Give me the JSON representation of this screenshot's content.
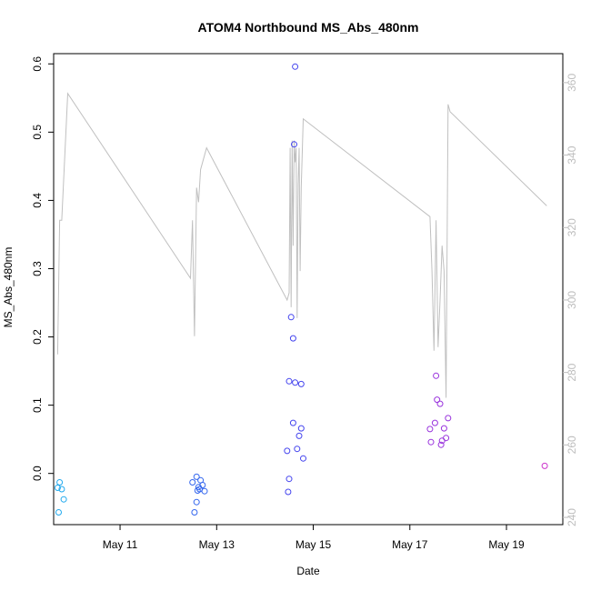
{
  "chart_data": {
    "type": "scatter",
    "title": "ATOM4 Northbound MS_Abs_480nm",
    "xlabel": "Date",
    "ylabel": "MS_Abs_480nm",
    "x_unit": "days",
    "xlim": [
      "2024-05-09T15:00",
      "2024-05-20T04:00"
    ],
    "ylim": [
      -0.075,
      0.615
    ],
    "y_ticks": [
      0.0,
      0.1,
      0.2,
      0.3,
      0.4,
      0.5,
      0.6
    ],
    "x_ticks": [
      {
        "label": "May 11",
        "value": "2024-05-11T00:00"
      },
      {
        "label": "May 13",
        "value": "2024-05-13T00:00"
      },
      {
        "label": "May 15",
        "value": "2024-05-15T00:00"
      },
      {
        "label": "May 17",
        "value": "2024-05-17T00:00"
      },
      {
        "label": "May 19",
        "value": "2024-05-19T00:00"
      }
    ],
    "y2lim": [
      238,
      368
    ],
    "y2_ticks": [
      240,
      260,
      280,
      300,
      320,
      340,
      360
    ],
    "grid": false,
    "legend": "none",
    "points": [
      {
        "x": "2024-05-09T18:00",
        "y": -0.013,
        "color": "#22aaee"
      },
      {
        "x": "2024-05-09T17:00",
        "y": -0.021,
        "color": "#22aaee"
      },
      {
        "x": "2024-05-09T19:00",
        "y": -0.023,
        "color": "#22aaee"
      },
      {
        "x": "2024-05-09T20:00",
        "y": -0.038,
        "color": "#22aaee"
      },
      {
        "x": "2024-05-09T17:30",
        "y": -0.057,
        "color": "#22aaee"
      },
      {
        "x": "2024-05-12T14:00",
        "y": -0.005,
        "color": "#3366ee"
      },
      {
        "x": "2024-05-12T16:00",
        "y": -0.01,
        "color": "#3366ee"
      },
      {
        "x": "2024-05-12T12:00",
        "y": -0.013,
        "color": "#3366ee"
      },
      {
        "x": "2024-05-12T17:00",
        "y": -0.017,
        "color": "#3366ee"
      },
      {
        "x": "2024-05-12T15:00",
        "y": -0.02,
        "color": "#3366ee"
      },
      {
        "x": "2024-05-12T15:30",
        "y": -0.023,
        "color": "#3366ee"
      },
      {
        "x": "2024-05-12T14:30",
        "y": -0.025,
        "color": "#3366ee"
      },
      {
        "x": "2024-05-12T18:00",
        "y": -0.026,
        "color": "#3366ee"
      },
      {
        "x": "2024-05-12T14:00",
        "y": -0.042,
        "color": "#3366ee"
      },
      {
        "x": "2024-05-12T13:00",
        "y": -0.057,
        "color": "#3366ee"
      },
      {
        "x": "2024-05-14T15:00",
        "y": 0.596,
        "color": "#4444ee"
      },
      {
        "x": "2024-05-14T14:30",
        "y": 0.482,
        "color": "#4444ee"
      },
      {
        "x": "2024-05-14T13:00",
        "y": 0.229,
        "color": "#4444ee"
      },
      {
        "x": "2024-05-14T14:00",
        "y": 0.198,
        "color": "#4444ee"
      },
      {
        "x": "2024-05-14T12:00",
        "y": 0.135,
        "color": "#4444ee"
      },
      {
        "x": "2024-05-14T15:00",
        "y": 0.133,
        "color": "#4444ee"
      },
      {
        "x": "2024-05-14T18:00",
        "y": 0.131,
        "color": "#4444ee"
      },
      {
        "x": "2024-05-14T14:00",
        "y": 0.074,
        "color": "#4444ee"
      },
      {
        "x": "2024-05-14T18:00",
        "y": 0.066,
        "color": "#4444ee"
      },
      {
        "x": "2024-05-14T17:00",
        "y": 0.055,
        "color": "#4444ee"
      },
      {
        "x": "2024-05-14T16:00",
        "y": 0.036,
        "color": "#4444ee"
      },
      {
        "x": "2024-05-14T11:00",
        "y": 0.033,
        "color": "#4444ee"
      },
      {
        "x": "2024-05-14T19:00",
        "y": 0.022,
        "color": "#4444ee"
      },
      {
        "x": "2024-05-14T12:00",
        "y": -0.008,
        "color": "#4444ee"
      },
      {
        "x": "2024-05-14T11:30",
        "y": -0.027,
        "color": "#4444ee"
      },
      {
        "x": "2024-05-17T13:00",
        "y": 0.143,
        "color": "#9933dd"
      },
      {
        "x": "2024-05-17T13:30",
        "y": 0.108,
        "color": "#9933dd"
      },
      {
        "x": "2024-05-17T15:00",
        "y": 0.102,
        "color": "#9933dd"
      },
      {
        "x": "2024-05-17T19:00",
        "y": 0.081,
        "color": "#9933dd"
      },
      {
        "x": "2024-05-17T12:30",
        "y": 0.074,
        "color": "#9933dd"
      },
      {
        "x": "2024-05-17T17:00",
        "y": 0.066,
        "color": "#9933dd"
      },
      {
        "x": "2024-05-17T10:00",
        "y": 0.065,
        "color": "#9933dd"
      },
      {
        "x": "2024-05-17T18:00",
        "y": 0.052,
        "color": "#9933dd"
      },
      {
        "x": "2024-05-17T16:00",
        "y": 0.048,
        "color": "#9933dd"
      },
      {
        "x": "2024-05-17T10:30",
        "y": 0.046,
        "color": "#9933dd"
      },
      {
        "x": "2024-05-17T15:30",
        "y": 0.042,
        "color": "#9933dd"
      },
      {
        "x": "2024-05-19T19:00",
        "y": 0.011,
        "color": "#cc33cc"
      }
    ],
    "line_series": {
      "axis": "right",
      "color": "#c0c0c0",
      "points": [
        [
          "2024-05-09T17:00",
          285
        ],
        [
          "2024-05-09T18:00",
          322
        ],
        [
          "2024-05-09T19:00",
          322
        ],
        [
          "2024-05-09T22:00",
          357
        ],
        [
          "2024-05-12T11:00",
          306
        ],
        [
          "2024-05-12T12:00",
          322
        ],
        [
          "2024-05-12T13:00",
          290
        ],
        [
          "2024-05-12T14:00",
          331
        ],
        [
          "2024-05-12T15:00",
          327
        ],
        [
          "2024-05-12T16:00",
          336
        ],
        [
          "2024-05-12T19:00",
          342
        ],
        [
          "2024-05-14T11:00",
          300
        ],
        [
          "2024-05-14T12:00",
          302
        ],
        [
          "2024-05-14T12:30",
          342
        ],
        [
          "2024-05-14T13:00",
          298
        ],
        [
          "2024-05-14T13:30",
          344
        ],
        [
          "2024-05-14T14:00",
          315
        ],
        [
          "2024-05-14T14:30",
          344
        ],
        [
          "2024-05-14T15:00",
          338
        ],
        [
          "2024-05-14T15:30",
          342
        ],
        [
          "2024-05-14T16:00",
          295
        ],
        [
          "2024-05-14T16:30",
          332
        ],
        [
          "2024-05-14T17:00",
          342
        ],
        [
          "2024-05-14T17:30",
          308
        ],
        [
          "2024-05-14T18:00",
          331
        ],
        [
          "2024-05-14T19:00",
          350
        ],
        [
          "2024-05-17T10:00",
          323
        ],
        [
          "2024-05-17T11:00",
          308
        ],
        [
          "2024-05-17T12:00",
          286
        ],
        [
          "2024-05-17T13:00",
          322
        ],
        [
          "2024-05-17T14:00",
          287
        ],
        [
          "2024-05-17T15:00",
          300
        ],
        [
          "2024-05-17T16:00",
          315
        ],
        [
          "2024-05-17T17:00",
          308
        ],
        [
          "2024-05-17T18:00",
          273
        ],
        [
          "2024-05-17T19:00",
          354
        ],
        [
          "2024-05-17T20:00",
          352
        ],
        [
          "2024-05-19T20:00",
          326
        ]
      ]
    }
  },
  "colors": {
    "axis": "#000000",
    "right_axis": "#bdbdbd",
    "line": "#c0c0c0",
    "background": "#ffffff"
  }
}
